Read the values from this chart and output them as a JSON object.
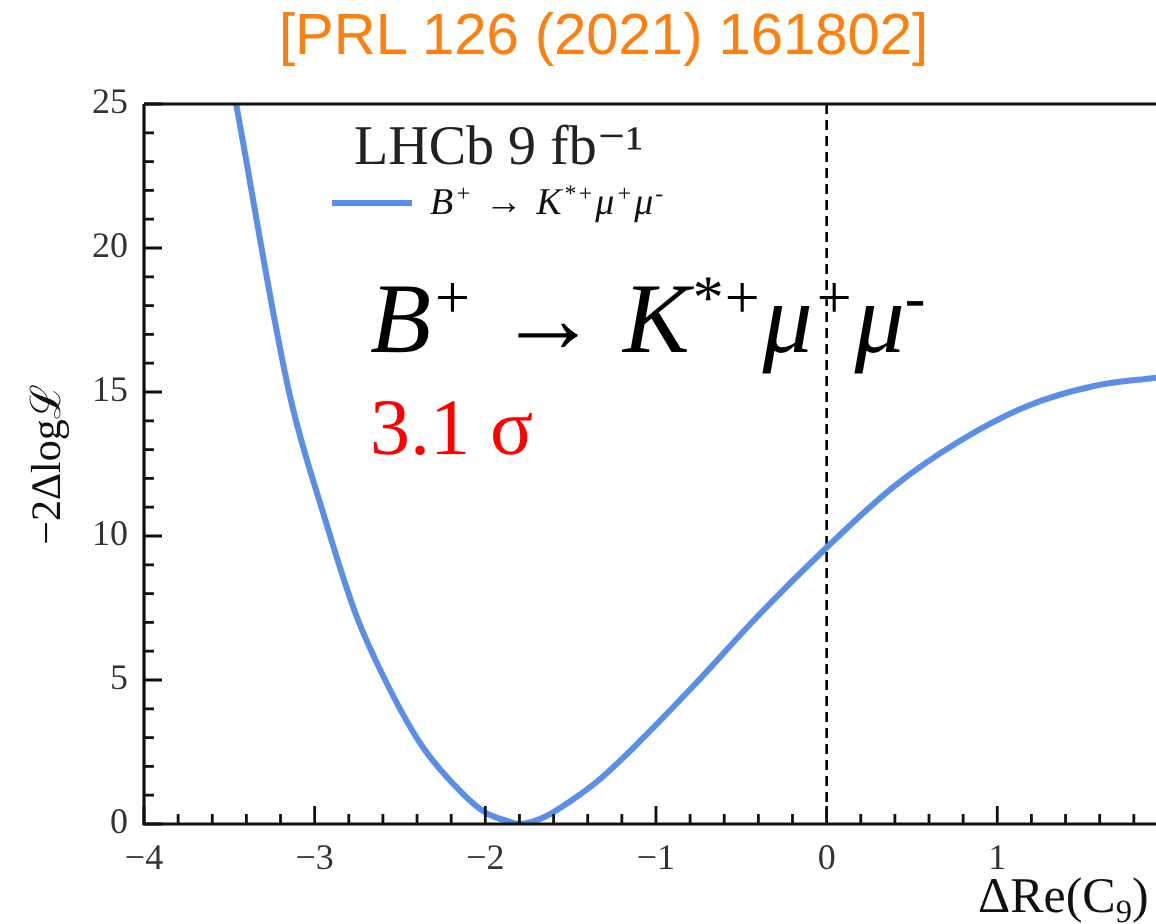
{
  "chart_data": {
    "type": "line",
    "title": "[PRL 126 (2021) 161802]",
    "xlabel": "ΔRe(C$_{9}$)",
    "ylabel": "−2Δlogℒ",
    "legend_title": "LHCb 9 fb⁻¹",
    "legend": "top left",
    "annotations": [
      "B$^{+}$ → K$^{*+}$μ$^{+}$μ$^{-}$",
      "3.1 σ"
    ],
    "x": [
      -3.46,
      -3.15,
      -2.94,
      -2.76,
      -2.57,
      -2.37,
      -2.14,
      -2.0,
      -1.87,
      -1.8,
      -1.65,
      -1.5,
      -1.32,
      -1.09,
      -0.78,
      -0.39,
      0.0,
      0.39,
      0.78,
      1.17,
      1.56,
      1.93
    ],
    "series": [
      {
        "name": "B$^{+}$ → K$^{*+}$μ$^{+}$μ$^{-}$",
        "color": "#5b8ee6",
        "values": [
          25.0,
          15.0,
          10.6,
          7.3,
          4.8,
          2.7,
          1.1,
          0.4,
          0.1,
          0.0,
          0.25,
          0.8,
          1.6,
          2.9,
          4.8,
          7.3,
          9.6,
          11.7,
          13.3,
          14.5,
          15.2,
          15.5
        ]
      }
    ],
    "xlim": [
      -4,
      1.93
    ],
    "xticks": [
      {
        "value": -4,
        "label": "−4"
      },
      {
        "value": -3.8,
        "label": null
      },
      {
        "value": -3.6,
        "label": null
      },
      {
        "value": -3.4,
        "label": null
      },
      {
        "value": -3.2,
        "label": null
      },
      {
        "value": -3,
        "label": "−3"
      },
      {
        "value": -2.8,
        "label": null
      },
      {
        "value": -2.6,
        "label": null
      },
      {
        "value": -2.4,
        "label": null
      },
      {
        "value": -2.2,
        "label": null
      },
      {
        "value": -2,
        "label": "−2"
      },
      {
        "value": -1.8,
        "label": null
      },
      {
        "value": -1.6,
        "label": null
      },
      {
        "value": -1.4,
        "label": null
      },
      {
        "value": -1.2,
        "label": null
      },
      {
        "value": -1,
        "label": "−1"
      },
      {
        "value": -0.8,
        "label": null
      },
      {
        "value": -0.6,
        "label": null
      },
      {
        "value": -0.4,
        "label": null
      },
      {
        "value": -0.2,
        "label": null
      },
      0,
      {
        "value": 0.2,
        "label": null
      },
      {
        "value": 0.4,
        "label": null
      },
      {
        "value": 0.6,
        "label": null
      },
      {
        "value": 0.8,
        "label": null
      },
      1,
      {
        "value": 1.2,
        "label": null
      },
      {
        "value": 1.4,
        "label": null
      },
      {
        "value": 1.6,
        "label": null
      },
      {
        "value": 1.8,
        "label": null
      }
    ],
    "ylim": [
      0,
      25
    ],
    "yticks": [
      0,
      {
        "value": 1,
        "label": null
      },
      {
        "value": 2,
        "label": null
      },
      {
        "value": 3,
        "label": null
      },
      {
        "value": 4,
        "label": null
      },
      5,
      {
        "value": 6,
        "label": null
      },
      {
        "value": 7,
        "label": null
      },
      {
        "value": 8,
        "label": null
      },
      {
        "value": 9,
        "label": null
      },
      10,
      {
        "value": 11,
        "label": null
      },
      {
        "value": 12,
        "label": null
      },
      {
        "value": 13,
        "label": null
      },
      {
        "value": 14,
        "label": null
      },
      15,
      {
        "value": 16,
        "label": null
      },
      {
        "value": 17,
        "label": null
      },
      {
        "value": 18,
        "label": null
      },
      {
        "value": 19,
        "label": null
      },
      20,
      {
        "value": 21,
        "label": null
      },
      {
        "value": 22,
        "label": null
      },
      {
        "value": 23,
        "label": null
      },
      {
        "value": 24,
        "label": null
      },
      25
    ],
    "ref_lines": [
      {
        "axis": "x",
        "value": 0,
        "color": "#000000",
        "line_style": "dashed"
      }
    ]
  }
}
